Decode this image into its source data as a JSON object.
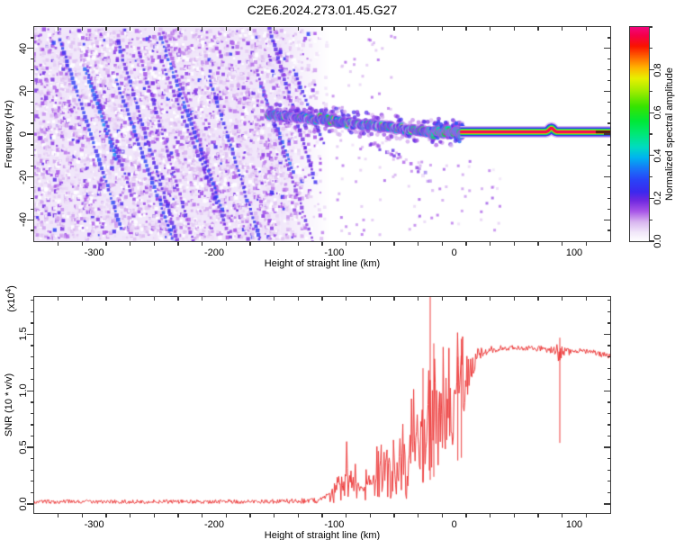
{
  "title": "C2E6.2024.273.01.45.G27",
  "colors": {
    "snr_line": "#ee3e3e",
    "axis": "#3a3a3a",
    "background": "#ffffff"
  },
  "chart_data": [
    {
      "type": "heatmap",
      "title": "C2E6.2024.273.01.45.G27",
      "xlabel": "Height of straight line (km)",
      "ylabel": "Frequency (Hz)",
      "xlim": [
        -350,
        130
      ],
      "ylim": [
        -50,
        50
      ],
      "xtick_values": [
        -300,
        -200,
        -100,
        0,
        100
      ],
      "xtick_labels": [
        "-300",
        "-200",
        "-100",
        "0",
        "100"
      ],
      "ytick_values": [
        40,
        20,
        0,
        -20,
        -40
      ],
      "ytick_labels": [
        "40",
        "20",
        "0",
        "-20",
        "-40"
      ],
      "x_minor_step": 20,
      "y_minor_step": 5,
      "colorbar": {
        "label": "Normalized spectral amplitude",
        "tick_values": [
          0.0,
          0.2,
          0.4,
          0.6,
          0.8
        ],
        "tick_labels": [
          "0.0",
          "0.2",
          "0.4",
          "0.6",
          "0.8"
        ],
        "minor_step": 0.1,
        "range": [
          0,
          1
        ],
        "stops": [
          [
            0.0,
            "#ffffff"
          ],
          [
            0.04,
            "#f2e8fa"
          ],
          [
            0.09,
            "#d9b6f0"
          ],
          [
            0.14,
            "#a855e8"
          ],
          [
            0.19,
            "#7028e0"
          ],
          [
            0.23,
            "#3c28ee"
          ],
          [
            0.29,
            "#2846f8"
          ],
          [
            0.34,
            "#1877f8"
          ],
          [
            0.39,
            "#00b4f0"
          ],
          [
            0.44,
            "#00dcc0"
          ],
          [
            0.5,
            "#00e878"
          ],
          [
            0.56,
            "#00e838"
          ],
          [
            0.63,
            "#38e400"
          ],
          [
            0.7,
            "#a0ec00"
          ],
          [
            0.76,
            "#e8f000"
          ],
          [
            0.81,
            "#ffb400"
          ],
          [
            0.86,
            "#ff6400"
          ],
          [
            0.91,
            "#fa1400"
          ],
          [
            0.96,
            "#f50048"
          ],
          [
            1.0,
            "#f2067e"
          ]
        ]
      },
      "noise_field": {
        "x_range": [
          -350,
          -104
        ],
        "fade_start": -145,
        "amplitude_range": [
          0.02,
          0.3
        ],
        "streak_count": 14,
        "streak_slope_km_per_hz": -0.62
      },
      "signal_trace": {
        "points": [
          [
            -155,
            9.2
          ],
          [
            -145,
            8.4
          ],
          [
            -130,
            7.7
          ],
          [
            -115,
            7.1
          ],
          [
            -100,
            6.2
          ],
          [
            -85,
            5.1
          ],
          [
            -70,
            4.1
          ],
          [
            -55,
            3.1
          ],
          [
            -40,
            2.2
          ],
          [
            -28,
            1.5
          ],
          [
            -15,
            1.0
          ],
          [
            0,
            0.8
          ],
          [
            8,
            0.9
          ]
        ],
        "spread_hz": 2.5,
        "amplitude_range": [
          0.3,
          0.95
        ]
      },
      "lower_tail": {
        "points": [
          [
            -70,
            -4
          ],
          [
            -55,
            -8
          ],
          [
            -42,
            -12
          ],
          [
            -32,
            -16
          ],
          [
            -24,
            -19
          ],
          [
            -16,
            -28
          ]
        ],
        "amplitude": 0.15
      },
      "transition_cluster": {
        "x_range": [
          -22,
          8
        ],
        "freq_hz": 0.8,
        "spread_hz": 3
      },
      "locked_line": {
        "x_range": [
          5,
          130
        ],
        "freq_hz": 1.0,
        "half_width_hz": 4.5,
        "bump_x": 81,
        "dark_segment_x": [
          118,
          130
        ]
      },
      "sparse_dots": {
        "x_range": [
          -40,
          40
        ],
        "f_range": [
          -45,
          -12
        ],
        "count": 45,
        "amplitude": 0.12
      }
    },
    {
      "type": "line",
      "xlabel": "Height of straight line (km)",
      "ylabel": "SNR (10 * v/v)",
      "y_scale": {
        "prefix": "(x10",
        "exponent": "4",
        "suffix": ")"
      },
      "xlim": [
        -350,
        130
      ],
      "ylim": [
        -0.08,
        1.83
      ],
      "xtick_values": [
        -300,
        -200,
        -100,
        0,
        100
      ],
      "xtick_labels": [
        "-300",
        "-200",
        "-100",
        "0",
        "100"
      ],
      "ytick_values": [
        0.0,
        0.5,
        1.0,
        1.5
      ],
      "ytick_labels": [
        "0.0",
        "0.5",
        "1.0",
        "1.5"
      ],
      "x_minor_step": 20,
      "y_minor_step": 0.1,
      "line_color": "#ee3e3e",
      "envelope": [
        [
          -350,
          0.02,
          0.018
        ],
        [
          -220,
          0.02,
          0.018
        ],
        [
          -150,
          0.022,
          0.02
        ],
        [
          -112,
          0.03,
          0.025
        ],
        [
          -103,
          0.06,
          0.05
        ],
        [
          -97,
          0.13,
          0.12
        ],
        [
          -90,
          0.2,
          0.18
        ],
        [
          -84,
          0.14,
          0.12
        ],
        [
          -77,
          0.1,
          0.08
        ],
        [
          -70,
          0.15,
          0.12
        ],
        [
          -63,
          0.2,
          0.16
        ],
        [
          -56,
          0.27,
          0.22
        ],
        [
          -49,
          0.2,
          0.17
        ],
        [
          -43,
          0.28,
          0.24
        ],
        [
          -37,
          0.33,
          0.28
        ],
        [
          -31,
          0.42,
          0.36
        ],
        [
          -27,
          0.52,
          0.42
        ],
        [
          -23,
          0.48,
          0.42
        ],
        [
          -19,
          0.55,
          0.42
        ],
        [
          -15,
          0.65,
          0.45
        ],
        [
          -11,
          0.72,
          0.4
        ],
        [
          -7,
          0.82,
          0.36
        ],
        [
          -3,
          0.78,
          0.34
        ],
        [
          1,
          0.92,
          0.3
        ],
        [
          5,
          1.0,
          0.33
        ],
        [
          9,
          1.08,
          0.26
        ],
        [
          13,
          1.18,
          0.16
        ],
        [
          17,
          1.27,
          0.1
        ],
        [
          22,
          1.32,
          0.06
        ],
        [
          28,
          1.36,
          0.035
        ],
        [
          40,
          1.38,
          0.025
        ],
        [
          60,
          1.38,
          0.022
        ],
        [
          75,
          1.37,
          0.028
        ],
        [
          84,
          1.36,
          0.04
        ],
        [
          87,
          1.34,
          0.1
        ],
        [
          90,
          1.37,
          0.07
        ],
        [
          93,
          1.34,
          0.04
        ],
        [
          100,
          1.36,
          0.025
        ],
        [
          110,
          1.35,
          0.022
        ],
        [
          120,
          1.33,
          0.026
        ],
        [
          130,
          1.3,
          0.028
        ]
      ],
      "spikes": [
        [
          -20,
          1.85
        ],
        [
          -17,
          1.42
        ],
        [
          -26,
          1.2
        ],
        [
          3,
          1.3
        ],
        [
          6,
          1.46
        ],
        [
          88,
          1.47
        ]
      ]
    }
  ]
}
